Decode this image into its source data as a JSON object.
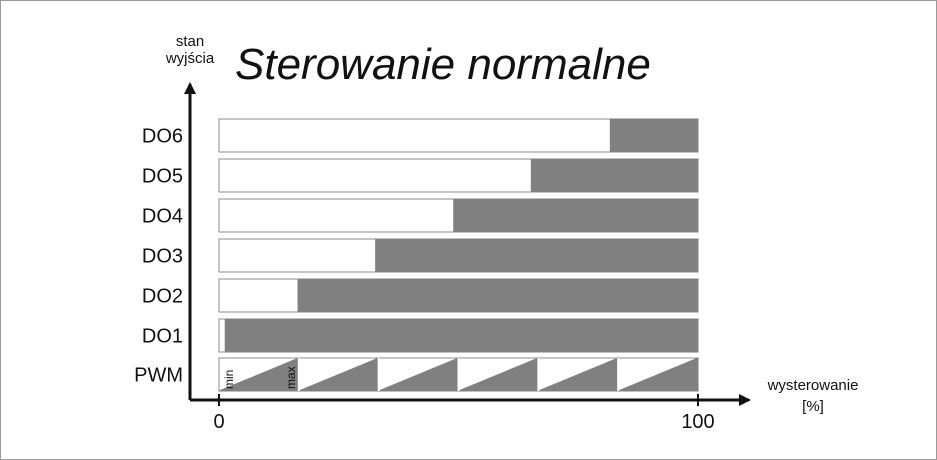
{
  "title": "Sterowanie normalne",
  "y_axis_label": [
    "stan",
    "wyjścia"
  ],
  "x_axis_label": [
    "wysterowanie",
    "[%]"
  ],
  "pwm_markers": {
    "min": "min",
    "max": "max"
  },
  "colors": {
    "on": "#808080",
    "off": "#ffffff",
    "outline": "#8c8c8c",
    "axis": "#111111"
  },
  "chart_data": {
    "type": "bar",
    "x_ticks": [
      "0",
      "100"
    ],
    "x_range": [
      0,
      100
    ],
    "rows": [
      {
        "label": "DO6",
        "on_from": 81.7
      },
      {
        "label": "DO5",
        "on_from": 65.2
      },
      {
        "label": "DO4",
        "on_from": 49.0
      },
      {
        "label": "DO3",
        "on_from": 32.7
      },
      {
        "label": "DO2",
        "on_from": 16.5
      },
      {
        "label": "DO1",
        "on_from": 1.3
      }
    ],
    "pwm": {
      "label": "PWM",
      "period_count": 6
    }
  }
}
